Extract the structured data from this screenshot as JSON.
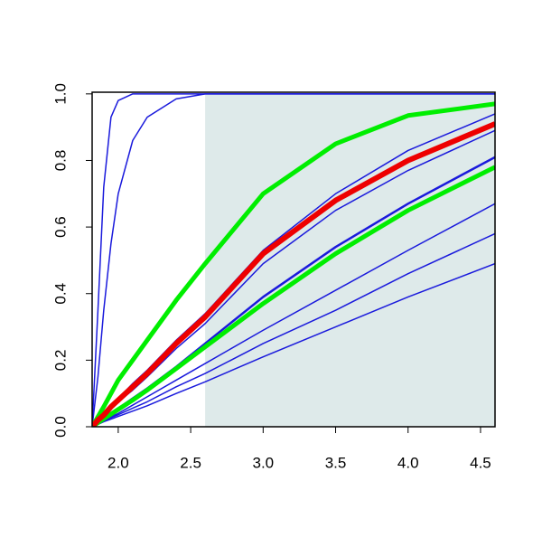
{
  "chart_data": {
    "type": "line",
    "x": [
      1.82,
      1.86,
      1.9,
      1.95,
      2.0,
      2.1,
      2.2,
      2.4,
      2.6,
      3.0,
      3.5,
      4.0,
      4.6
    ],
    "xlim": [
      1.82,
      4.6
    ],
    "ylim": [
      0,
      1.005
    ],
    "xticks": [
      {
        "value": 2,
        "label": "2.0"
      },
      {
        "value": 2.5,
        "label": "2.5"
      },
      {
        "value": 3,
        "label": "3.0"
      },
      {
        "value": 3.5,
        "label": "3.5"
      },
      {
        "value": 4,
        "label": "4.0"
      },
      {
        "value": 4.5,
        "label": "4.5"
      }
    ],
    "yticks": [
      {
        "value": 0,
        "label": "0.0"
      },
      {
        "value": 0.2,
        "label": "0.2"
      },
      {
        "value": 0.4,
        "label": "0.4"
      },
      {
        "value": 0.6,
        "label": "0.6"
      },
      {
        "value": 0.8,
        "label": "0.8"
      },
      {
        "value": 1,
        "label": "1.0"
      }
    ],
    "shaded_region": {
      "xrange": [
        2.6,
        4.6
      ],
      "yrange": [
        0,
        1
      ],
      "color": "#deeaea"
    },
    "series": [
      {
        "color": "#1a1adc",
        "line_width": 1.5,
        "values": [
          0,
          0.35,
          0.72,
          0.93,
          0.98,
          1,
          1,
          1,
          1,
          1,
          1,
          1,
          1
        ]
      },
      {
        "color": "#1a1adc",
        "line_width": 1.5,
        "values": [
          0,
          0.15,
          0.35,
          0.55,
          0.7,
          0.86,
          0.93,
          0.985,
          1,
          1,
          1,
          1,
          1
        ]
      },
      {
        "color": "#1a1adc",
        "line_width": 1.5,
        "values": [
          0,
          0.02,
          0.04,
          0.065,
          0.085,
          0.13,
          0.17,
          0.26,
          0.34,
          0.53,
          0.7,
          0.83,
          0.94
        ]
      },
      {
        "color": "#1a1adc",
        "line_width": 1.5,
        "values": [
          0,
          0.018,
          0.033,
          0.055,
          0.075,
          0.11,
          0.15,
          0.235,
          0.31,
          0.49,
          0.65,
          0.77,
          0.89
        ]
      },
      {
        "color": "#1a1adc",
        "line_width": 2.5,
        "values": [
          0,
          0.013,
          0.025,
          0.04,
          0.055,
          0.085,
          0.115,
          0.18,
          0.25,
          0.39,
          0.54,
          0.67,
          0.81
        ]
      },
      {
        "color": "#1a1adc",
        "line_width": 1.5,
        "values": [
          0,
          0.01,
          0.02,
          0.03,
          0.04,
          0.065,
          0.09,
          0.14,
          0.19,
          0.29,
          0.41,
          0.53,
          0.67
        ]
      },
      {
        "color": "#1a1adc",
        "line_width": 1.5,
        "values": [
          0,
          0.008,
          0.017,
          0.027,
          0.036,
          0.056,
          0.075,
          0.12,
          0.16,
          0.25,
          0.35,
          0.46,
          0.58
        ]
      },
      {
        "color": "#1a1adc",
        "line_width": 1.5,
        "values": [
          0,
          0.007,
          0.015,
          0.023,
          0.031,
          0.047,
          0.063,
          0.1,
          0.135,
          0.21,
          0.3,
          0.39,
          0.49
        ]
      },
      {
        "color": "#00ee00",
        "line_width": 5,
        "values": [
          0,
          0.03,
          0.06,
          0.1,
          0.14,
          0.2,
          0.26,
          0.38,
          0.49,
          0.7,
          0.85,
          0.935,
          0.97
        ]
      },
      {
        "color": "#00ee00",
        "line_width": 5,
        "values": [
          0,
          0.012,
          0.024,
          0.038,
          0.052,
          0.08,
          0.11,
          0.175,
          0.24,
          0.37,
          0.52,
          0.65,
          0.78
        ]
      },
      {
        "color": "#ee0000",
        "line_width": 6,
        "values": [
          0,
          0.02,
          0.035,
          0.06,
          0.08,
          0.12,
          0.16,
          0.25,
          0.33,
          0.52,
          0.68,
          0.8,
          0.91
        ]
      }
    ]
  }
}
